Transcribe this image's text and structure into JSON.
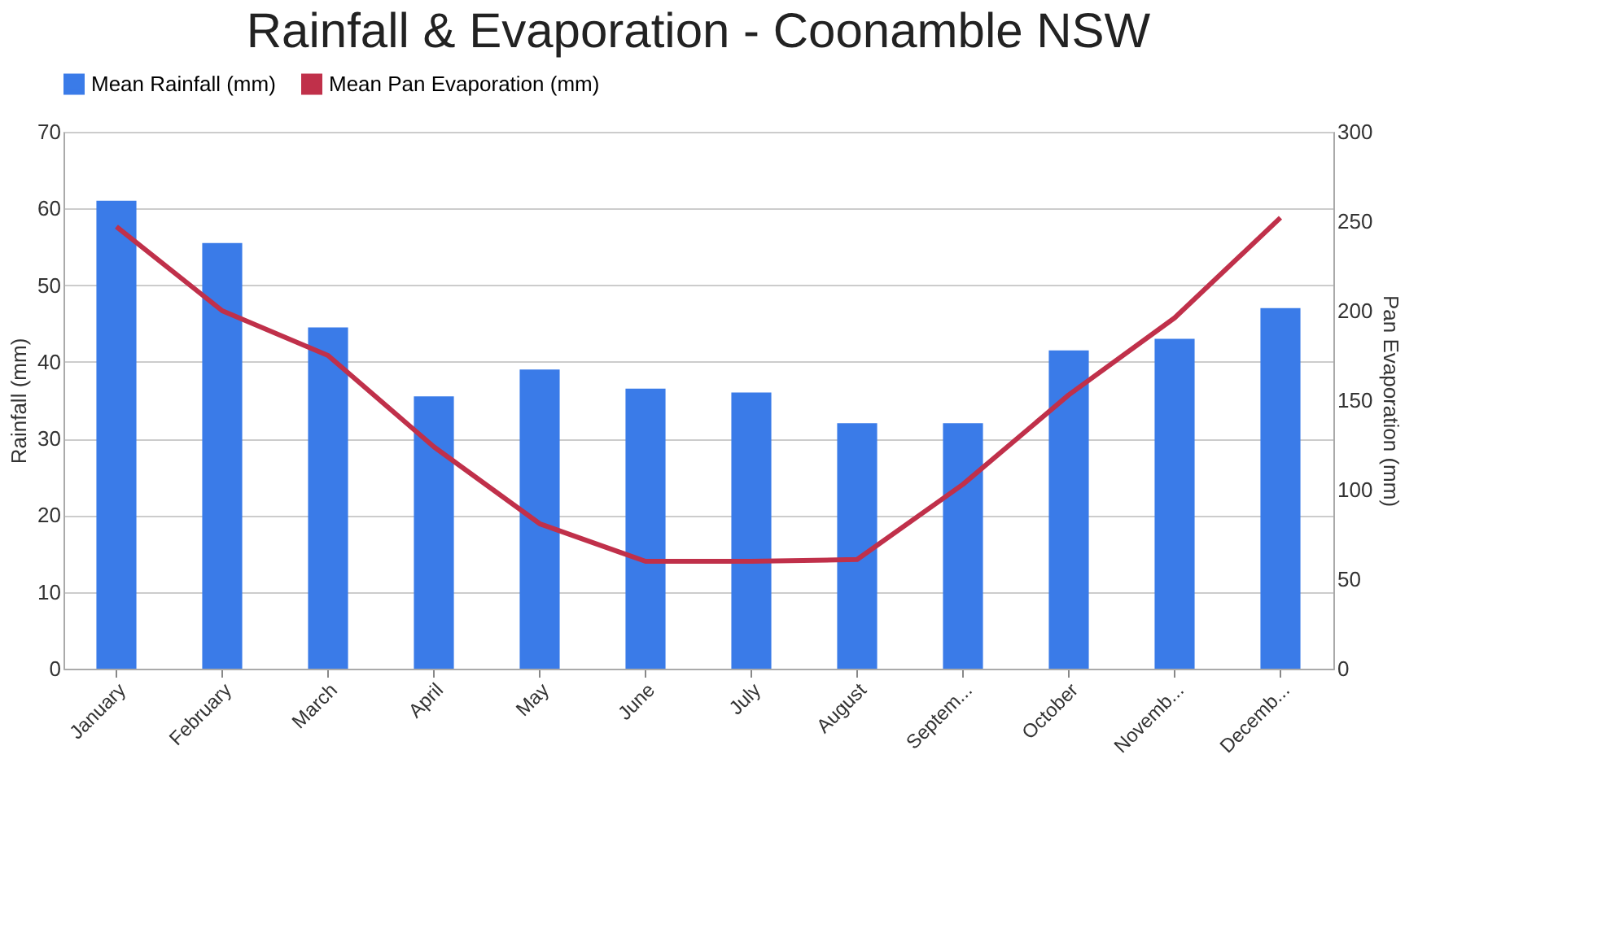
{
  "chart_data": {
    "type": "bar",
    "title": "Rainfall & Evaporation - Coonamble NSW",
    "ylabel": "Rainfall (mm)",
    "y2label": "Pan Evaporation (mm)",
    "categories": [
      "January",
      "February",
      "March",
      "April",
      "May",
      "June",
      "July",
      "August",
      "Septem...",
      "October",
      "Novemb...",
      "Decemb..."
    ],
    "series": [
      {
        "name": "Mean Rainfall (mm)",
        "color": "#3a7be8",
        "values": [
          61,
          55.5,
          44.5,
          35.5,
          39,
          36.5,
          36,
          32,
          32,
          41.5,
          43,
          47
        ]
      },
      {
        "name": "Mean Pan Evaporation (mm)",
        "type": "line",
        "axis": "y2",
        "color": "#c0304a",
        "values": [
          247,
          200,
          175,
          124,
          81,
          60,
          60,
          61,
          103,
          153,
          196,
          252
        ]
      }
    ],
    "ylim": [
      0,
      70
    ],
    "yticks": [
      0,
      10,
      20,
      30,
      40,
      50,
      60,
      70
    ],
    "y2lim": [
      0,
      300
    ],
    "y2ticks": [
      0,
      50,
      100,
      150,
      200,
      250,
      300
    ],
    "grid": "y",
    "legend": "top",
    "marker": "none",
    "line_style": "solid"
  }
}
